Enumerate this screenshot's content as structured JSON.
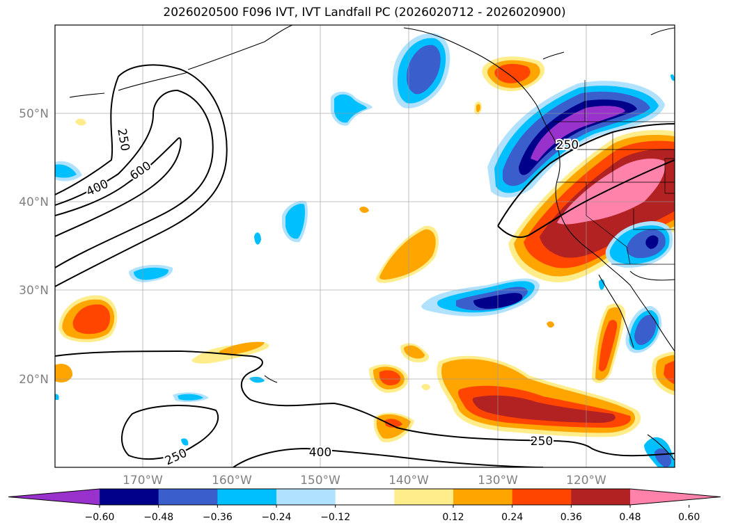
{
  "title": "2026020500 F096 IVT, IVT Landfall PC (2026020712 - 2026020900)",
  "axes": {
    "lon_labels": [
      "170°W",
      "160°W",
      "150°W",
      "140°W",
      "130°W",
      "120°W"
    ],
    "lat_labels": [
      "50°N",
      "40°N",
      "30°N",
      "20°N"
    ]
  },
  "contours": {
    "labels": [
      "250",
      "400",
      "600",
      "250",
      "250",
      "400",
      "250"
    ]
  },
  "colorbar": {
    "ticks": [
      "−0.60",
      "−0.48",
      "−0.36",
      "−0.24",
      "−0.12",
      "0.12",
      "0.24",
      "0.36",
      "0.48",
      "0.60"
    ],
    "colors": [
      "#9932cc",
      "#00008b",
      "#3a5fcd",
      "#00bfff",
      "#b0e2ff",
      "#ffffff",
      "#ffec8b",
      "#ffa500",
      "#ff4500",
      "#b22222",
      "#ff82ab"
    ]
  },
  "colors": {
    "purple": "#9932cc",
    "navy": "#00008b",
    "royal": "#3a5fcd",
    "sky": "#00bfff",
    "lightsky": "#b0e2ff",
    "white": "#ffffff",
    "lightyellow": "#ffec8b",
    "orange": "#ffa500",
    "orangered": "#ff4500",
    "firebrick": "#b22222",
    "pink": "#ff82ab"
  }
}
